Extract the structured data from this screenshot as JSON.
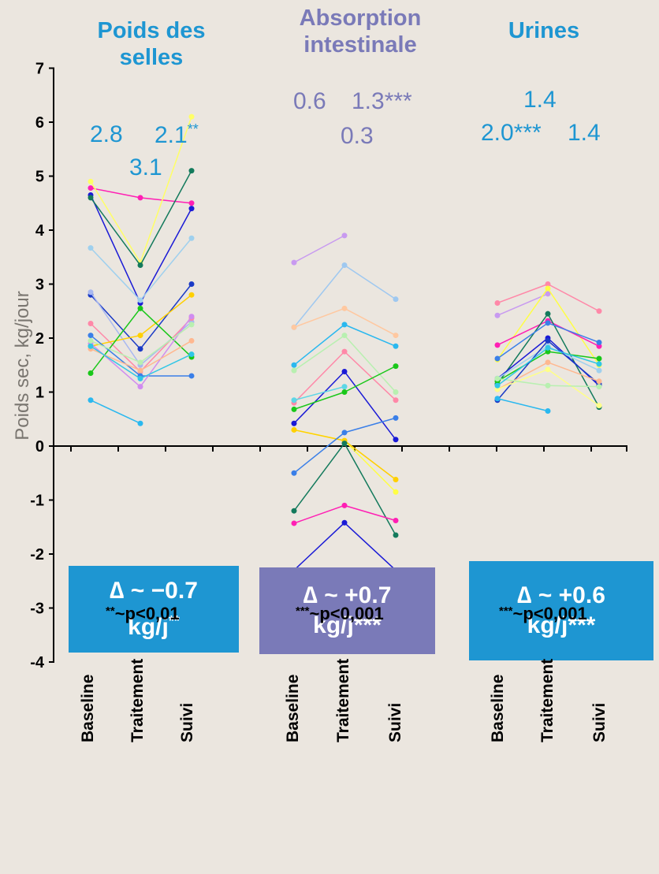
{
  "groups": [
    {
      "title_line1": "Poids des",
      "title_line2": "selles",
      "color": "#1e96d2"
    },
    {
      "title_line1": "Absorption",
      "title_line2": "intestinale",
      "color": "#7a7ab8"
    },
    {
      "title_line1": "Urines",
      "title_line2": "",
      "color": "#1e96d2"
    }
  ],
  "annotations": {
    "g1_a": "2.8",
    "g1_b": "2.1",
    "g1_b_sup": "**",
    "g1_c": "3.1",
    "g2_a": "0.6",
    "g2_b": "1.3***",
    "g2_c": "0.3",
    "g3_a": "1.4",
    "g3_b": "2.0***",
    "g3_c": "1.4"
  },
  "delta_boxes": [
    {
      "line1": "∆ ~ −0.7",
      "line2": "kg/j",
      "sup": "**",
      "color": "#1e96d2"
    },
    {
      "line1": "∆ ~ +0.7",
      "line2": "kg/j***",
      "sup": "",
      "color": "#7a7ab8"
    },
    {
      "line1": "∆ ~ +0.6",
      "line2": "kg/j***",
      "sup": "",
      "color": "#1e96d2"
    }
  ],
  "x_labels": [
    "Baseline",
    "Traitement",
    "Suivi"
  ],
  "footnotes": [
    {
      "stars": "**",
      "text": "~p<0,01"
    },
    {
      "stars": "***",
      "text": "~p<0,001"
    },
    {
      "stars": "***",
      "text": "~p<0,001"
    }
  ],
  "chart_data": {
    "type": "line",
    "ylabel": "Poids sec, kg/jour",
    "ylim": [
      -4,
      7
    ],
    "yticks": [
      7,
      6,
      5,
      4,
      3,
      2,
      1,
      0,
      -1,
      -2,
      -3,
      -4
    ],
    "categories": [
      "Baseline",
      "Traitement",
      "Suivi"
    ],
    "panels": [
      {
        "name": "Poids des selles",
        "series": [
          {
            "color": "#ff1fb4",
            "values": [
              4.78,
              4.6,
              4.5
            ]
          },
          {
            "color": "#ffff66",
            "values": [
              4.9,
              3.4,
              6.1
            ]
          },
          {
            "color": "#1a1ad6",
            "values": [
              4.65,
              2.65,
              4.4
            ]
          },
          {
            "color": "#137a5c",
            "values": [
              4.6,
              3.35,
              5.1
            ]
          },
          {
            "color": "#9fd0ee",
            "values": [
              3.67,
              2.7,
              3.85
            ]
          },
          {
            "color": "#1a3ac6",
            "values": [
              2.8,
              1.8,
              3.0
            ]
          },
          {
            "color": "#a8b8f0",
            "values": [
              2.85,
              1.5,
              2.3
            ]
          },
          {
            "color": "#ff88a8",
            "values": [
              2.27,
              1.38,
              2.37
            ]
          },
          {
            "color": "#ffd000",
            "values": [
              1.85,
              2.05,
              2.8
            ]
          },
          {
            "color": "#19c719",
            "values": [
              1.35,
              2.55,
              1.65
            ]
          },
          {
            "color": "#3a7fe8",
            "values": [
              2.05,
              1.3,
              1.3
            ]
          },
          {
            "color": "#d08cf0",
            "values": [
              1.9,
              1.1,
              2.4
            ]
          },
          {
            "color": "#ffb890",
            "values": [
              1.8,
              1.4,
              1.95
            ]
          },
          {
            "color": "#30c6e6",
            "values": [
              1.85,
              1.25,
              1.7
            ]
          },
          {
            "color": "#b8f0b0",
            "values": [
              1.95,
              1.55,
              2.25
            ]
          },
          {
            "color": "#2ab8ef",
            "values": [
              0.85,
              0.42,
              null
            ]
          }
        ]
      },
      {
        "name": "Absorption intestinale",
        "series": [
          {
            "color": "#c89af0",
            "values": [
              3.4,
              3.9,
              null
            ]
          },
          {
            "color": "#9fc8f0",
            "values": [
              2.2,
              3.35,
              2.72
            ]
          },
          {
            "color": "#ffc8a0",
            "values": [
              2.2,
              2.55,
              2.05
            ]
          },
          {
            "color": "#2ab8ef",
            "values": [
              1.5,
              2.25,
              1.85
            ]
          },
          {
            "color": "#b8f0b0",
            "values": [
              1.4,
              2.05,
              1.0
            ]
          },
          {
            "color": "#ff88a8",
            "values": [
              0.8,
              1.75,
              0.85
            ]
          },
          {
            "color": "#1a1ad6",
            "values": [
              0.42,
              1.38,
              0.12
            ]
          },
          {
            "color": "#19c719",
            "values": [
              0.68,
              1.0,
              1.48
            ]
          },
          {
            "color": "#5ed6e6",
            "values": [
              0.85,
              1.1,
              null
            ]
          },
          {
            "color": "#ffff44",
            "values": [
              0.3,
              0.1,
              -0.85
            ]
          },
          {
            "color": "#ffd000",
            "values": [
              0.3,
              0.1,
              -0.62
            ]
          },
          {
            "color": "#3a7fe8",
            "values": [
              -0.5,
              0.25,
              0.52
            ]
          },
          {
            "color": "#137a5c",
            "values": [
              -1.2,
              0.05,
              -1.65
            ]
          },
          {
            "color": "#ff1fb4",
            "values": [
              -1.43,
              -1.1,
              -1.38
            ]
          },
          {
            "color": "#1a1ad6",
            "values": [
              -2.3,
              -1.42,
              -2.3
            ]
          }
        ]
      },
      {
        "name": "Urines",
        "series": [
          {
            "color": "#ff88a8",
            "values": [
              2.65,
              3.0,
              2.5
            ]
          },
          {
            "color": "#c89af0",
            "values": [
              2.42,
              2.82,
              null
            ]
          },
          {
            "color": "#ffff44",
            "values": [
              1.6,
              2.92,
              1.5
            ]
          },
          {
            "color": "#ff1fb4",
            "values": [
              1.87,
              2.32,
              1.85
            ]
          },
          {
            "color": "#137a5c",
            "values": [
              1.15,
              2.45,
              0.72
            ]
          },
          {
            "color": "#1a1ad6",
            "values": [
              1.25,
              2.0,
              1.12
            ]
          },
          {
            "color": "#3a7fe8",
            "values": [
              1.62,
              2.28,
              1.92
            ]
          },
          {
            "color": "#19c719",
            "values": [
              1.2,
              1.75,
              1.62
            ]
          },
          {
            "color": "#9fd0ee",
            "values": [
              1.25,
              1.85,
              1.4
            ]
          },
          {
            "color": "#1a3ac6",
            "values": [
              0.85,
              1.95,
              1.15
            ]
          },
          {
            "color": "#ffb890",
            "values": [
              1.05,
              1.55,
              1.2
            ]
          },
          {
            "color": "#ffff88",
            "values": [
              1.05,
              1.42,
              0.75
            ]
          },
          {
            "color": "#b8f0b0",
            "values": [
              1.25,
              1.12,
              1.1
            ]
          },
          {
            "color": "#2ab8ef",
            "values": [
              0.88,
              0.65,
              null
            ]
          },
          {
            "color": "#30c6e6",
            "values": [
              1.12,
              1.82,
              1.52
            ]
          }
        ]
      }
    ]
  }
}
